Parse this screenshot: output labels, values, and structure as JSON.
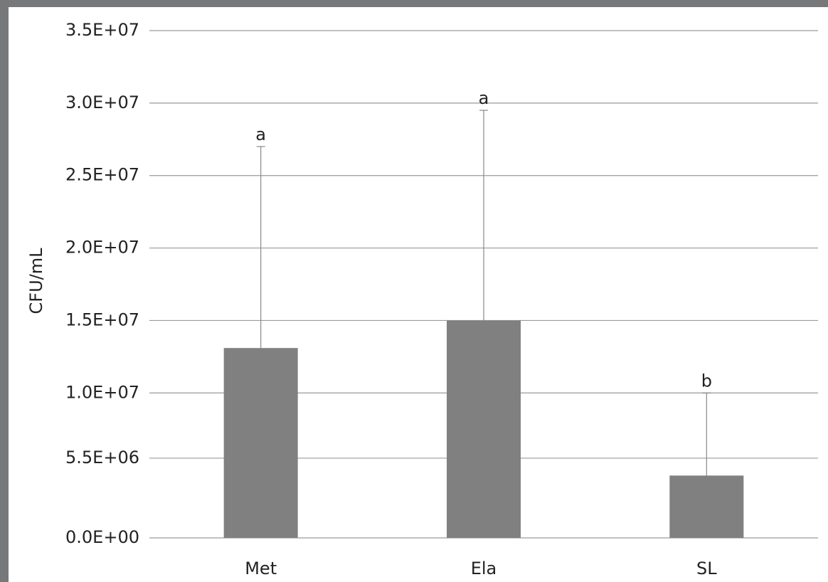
{
  "chart_data": {
    "type": "bar",
    "y_label": "CFU/mL",
    "categories": [
      "Met",
      "Ela",
      "SL"
    ],
    "values": [
      13100000,
      15000000,
      4300000
    ],
    "errors": [
      13900000,
      14500000,
      5700000
    ],
    "annotations": [
      "a",
      "a",
      "b"
    ],
    "color": "#808080",
    "error_color": "#888888",
    "ylim": [
      0,
      35000000
    ],
    "yticks": [
      {
        "value": 0,
        "label": "0.0E+00"
      },
      {
        "value": 5500000,
        "label": "5.5E+06"
      },
      {
        "value": 10000000,
        "label": "1.0E+07"
      },
      {
        "value": 15000000,
        "label": "1.5E+07"
      },
      {
        "value": 20000000,
        "label": "2.0E+07"
      },
      {
        "value": 25000000,
        "label": "2.5E+07"
      },
      {
        "value": 30000000,
        "label": "3.0E+07"
      },
      {
        "value": 35000000,
        "label": "3.5E+07"
      }
    ],
    "grid": true
  }
}
